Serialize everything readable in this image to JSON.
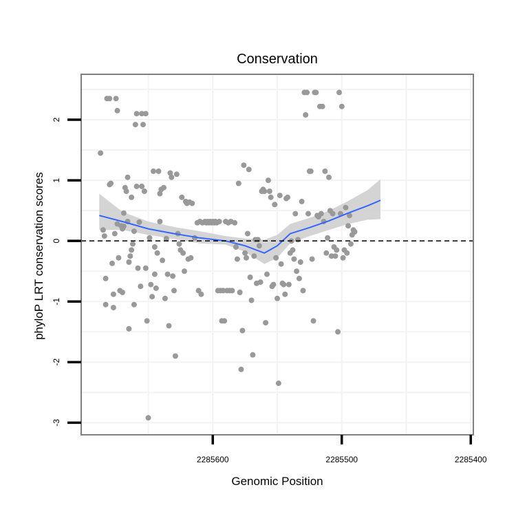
{
  "chart_data": {
    "type": "scatter",
    "title": "Conservation",
    "xlabel": "Genomic Position",
    "ylabel": "phyloP LRT conservation scores",
    "x_reversed": true,
    "xlim": [
      2285702,
      2285398
    ],
    "ylim": [
      -3.2,
      2.75
    ],
    "x_ticks": [
      2285600,
      2285500,
      2285400
    ],
    "x_tick_labels": [
      "2285600",
      "2285500",
      "2285400"
    ],
    "y_ticks": [
      -3,
      -2,
      -1,
      0,
      1,
      2
    ],
    "y_tick_labels": [
      "-3",
      "-2",
      "-1",
      "0",
      "1",
      "2"
    ],
    "reference_line": {
      "y": 0,
      "style": "dashed",
      "color": "#000000"
    },
    "grid": true,
    "colors": {
      "points": "#999999",
      "smooth_line": "#3366ff",
      "ribbon": "#cccccc",
      "grid": "#f3f3f3",
      "frame": "#7f7f7f"
    },
    "series": [
      {
        "kind": "points",
        "points": [
          [
            2285687,
            1.45
          ],
          [
            2285685,
            0.18
          ],
          [
            2285684,
            0.08
          ],
          [
            2285683,
            -0.62
          ],
          [
            2285683,
            -1.05
          ],
          [
            2285682,
            2.35
          ],
          [
            2285680,
            2.35
          ],
          [
            2285680,
            0.93
          ],
          [
            2285679,
            0.95
          ],
          [
            2285678,
            -0.37
          ],
          [
            2285677,
            -1.1
          ],
          [
            2285677,
            -0.88
          ],
          [
            2285676,
            0.12
          ],
          [
            2285675,
            2.35
          ],
          [
            2285674,
            2.15
          ],
          [
            2285674,
            0.28
          ],
          [
            2285673,
            -0.28
          ],
          [
            2285672,
            -0.82
          ],
          [
            2285671,
            0.25
          ],
          [
            2285670,
            0.2
          ],
          [
            2285670,
            -0.85
          ],
          [
            2285669,
            0.46
          ],
          [
            2285669,
            0.24
          ],
          [
            2285668,
            0.88
          ],
          [
            2285667,
            0.82
          ],
          [
            2285666,
            1.05
          ],
          [
            2285666,
            0.32
          ],
          [
            2285665,
            -0.35
          ],
          [
            2285665,
            -1.45
          ],
          [
            2285664,
            -0.25
          ],
          [
            2285663,
            0.72
          ],
          [
            2285663,
            -0.15
          ],
          [
            2285662,
            -0.05
          ],
          [
            2285661,
            0.16
          ],
          [
            2285661,
            -1.05
          ],
          [
            2285660,
            1.92
          ],
          [
            2285659,
            2.1
          ],
          [
            2285659,
            0.9
          ],
          [
            2285658,
            -0.45
          ],
          [
            2285657,
            0.31
          ],
          [
            2285656,
            -0.75
          ],
          [
            2285655,
            2.1
          ],
          [
            2285655,
            0.9
          ],
          [
            2285654,
            1.92
          ],
          [
            2285653,
            0.82
          ],
          [
            2285652,
            -0.45
          ],
          [
            2285652,
            2.1
          ],
          [
            2285651,
            -1.32
          ],
          [
            2285650,
            -2.92
          ],
          [
            2285649,
            0.05
          ],
          [
            2285648,
            -0.72
          ],
          [
            2285647,
            -0.92
          ],
          [
            2285646,
            1.15
          ],
          [
            2285645,
            -0.1
          ],
          [
            2285645,
            -0.55
          ],
          [
            2285644,
            -0.78
          ],
          [
            2285643,
            -0.2
          ],
          [
            2285642,
            1.15
          ],
          [
            2285641,
            0.78
          ],
          [
            2285641,
            0.32
          ],
          [
            2285640,
            0.85
          ],
          [
            2285639,
            -0.32
          ],
          [
            2285638,
            0.88
          ],
          [
            2285637,
            -0.95
          ],
          [
            2285636,
            0.04
          ],
          [
            2285635,
            -0.55
          ],
          [
            2285634,
            -1.4
          ],
          [
            2285633,
            1.12
          ],
          [
            2285632,
            1.05
          ],
          [
            2285631,
            -0.58
          ],
          [
            2285630,
            -0.82
          ],
          [
            2285629,
            -1.9
          ],
          [
            2285628,
            1.1
          ],
          [
            2285627,
            0.12
          ],
          [
            2285626,
            -0.05
          ],
          [
            2285625,
            -0.15
          ],
          [
            2285624,
            0.72
          ],
          [
            2285623,
            -0.2
          ],
          [
            2285622,
            -0.5
          ],
          [
            2285621,
            0.65
          ],
          [
            2285620,
            0.62
          ],
          [
            2285619,
            -0.3
          ],
          [
            2285618,
            0.64
          ],
          [
            2285617,
            -0.28
          ],
          [
            2285616,
            0.62
          ],
          [
            2285614,
            0.05
          ],
          [
            2285612,
            0.3
          ],
          [
            2285611,
            -0.82
          ],
          [
            2285610,
            0.32
          ],
          [
            2285609,
            -0.88
          ],
          [
            2285608,
            0.3
          ],
          [
            2285606,
            0.32
          ],
          [
            2285605,
            0.3
          ],
          [
            2285604,
            0.32
          ],
          [
            2285603,
            0.3
          ],
          [
            2285602,
            0.32
          ],
          [
            2285601,
            0.3
          ],
          [
            2285600,
            0.32
          ],
          [
            2285599,
            0.3
          ],
          [
            2285598,
            0.32
          ],
          [
            2285597,
            0.3
          ],
          [
            2285596,
            -0.82
          ],
          [
            2285595,
            0.32
          ],
          [
            2285594,
            -0.82
          ],
          [
            2285593,
            -1.32
          ],
          [
            2285592,
            -0.82
          ],
          [
            2285591,
            -1.32
          ],
          [
            2285590,
            0.32
          ],
          [
            2285589,
            -0.82
          ],
          [
            2285588,
            0.3
          ],
          [
            2285587,
            -0.82
          ],
          [
            2285586,
            0.32
          ],
          [
            2285585,
            -0.82
          ],
          [
            2285583,
            0.3
          ],
          [
            2285582,
            -0.1
          ],
          [
            2285581,
            -0.3
          ],
          [
            2285580,
            0.95
          ],
          [
            2285579,
            -0.85
          ],
          [
            2285578,
            -2.12
          ],
          [
            2285577,
            -1.48
          ],
          [
            2285576,
            1.25
          ],
          [
            2285575,
            -0.2
          ],
          [
            2285574,
            -0.28
          ],
          [
            2285573,
            0.12
          ],
          [
            2285572,
            1.18
          ],
          [
            2285571,
            -0.6
          ],
          [
            2285570,
            -0.98
          ],
          [
            2285569,
            -1.88
          ],
          [
            2285568,
            -0.25
          ],
          [
            2285567,
            0.02
          ],
          [
            2285566,
            -0.7
          ],
          [
            2285565,
            0.02
          ],
          [
            2285564,
            -0.08
          ],
          [
            2285563,
            -0.68
          ],
          [
            2285562,
            0.82
          ],
          [
            2285561,
            0.85
          ],
          [
            2285560,
            0.82
          ],
          [
            2285559,
            -1.35
          ],
          [
            2285558,
            -0.55
          ],
          [
            2285557,
            1.0
          ],
          [
            2285556,
            0.82
          ],
          [
            2285555,
            0.72
          ],
          [
            2285554,
            -0.75
          ],
          [
            2285553,
            -0.72
          ],
          [
            2285552,
            0.6
          ],
          [
            2285551,
            -0.28
          ],
          [
            2285550,
            -0.95
          ],
          [
            2285549,
            -2.35
          ],
          [
            2285548,
            0.75
          ],
          [
            2285547,
            -0.38
          ],
          [
            2285546,
            -0.7
          ],
          [
            2285545,
            -0.72
          ],
          [
            2285544,
            -0.88
          ],
          [
            2285543,
            0.7
          ],
          [
            2285542,
            0.72
          ],
          [
            2285541,
            -0.72
          ],
          [
            2285540,
            -0.2
          ],
          [
            2285539,
            0.0
          ],
          [
            2285538,
            -0.15
          ],
          [
            2285537,
            -0.3
          ],
          [
            2285536,
            0.45
          ],
          [
            2285535,
            -0.5
          ],
          [
            2285534,
            0.02
          ],
          [
            2285533,
            -0.62
          ],
          [
            2285532,
            -0.35
          ],
          [
            2285531,
            0.65
          ],
          [
            2285530,
            -0.82
          ],
          [
            2285529,
            2.45
          ],
          [
            2285528,
            2.08
          ],
          [
            2285527,
            2.45
          ],
          [
            2285526,
            0.45
          ],
          [
            2285525,
            1.15
          ],
          [
            2285524,
            1.15
          ],
          [
            2285523,
            -0.3
          ],
          [
            2285522,
            -1.32
          ],
          [
            2285521,
            2.45
          ],
          [
            2285520,
            2.45
          ],
          [
            2285519,
            0.42
          ],
          [
            2285518,
            0.4
          ],
          [
            2285517,
            2.22
          ],
          [
            2285516,
            0.45
          ],
          [
            2285515,
            2.22
          ],
          [
            2285514,
            0.32
          ],
          [
            2285513,
            1.15
          ],
          [
            2285512,
            -0.2
          ],
          [
            2285511,
            0.05
          ],
          [
            2285510,
            1.05
          ],
          [
            2285509,
            0.5
          ],
          [
            2285508,
            -0.25
          ],
          [
            2285507,
            0.45
          ],
          [
            2285506,
            -0.1
          ],
          [
            2285505,
            -0.25
          ],
          [
            2285504,
            -0.15
          ],
          [
            2285503,
            -1.5
          ],
          [
            2285502,
            2.45
          ],
          [
            2285501,
            0.45
          ],
          [
            2285500,
            2.22
          ],
          [
            2285499,
            -0.28
          ],
          [
            2285498,
            -0.15
          ],
          [
            2285497,
            0.55
          ],
          [
            2285496,
            -0.2
          ],
          [
            2285495,
            0.25
          ],
          [
            2285494,
            0.42
          ],
          [
            2285493,
            -0.05
          ],
          [
            2285492,
            0.1
          ],
          [
            2285491,
            0.18
          ],
          [
            2285490,
            0.15
          ]
        ]
      },
      {
        "kind": "smooth",
        "x": [
          2285688,
          2285670,
          2285650,
          2285630,
          2285610,
          2285590,
          2285575,
          2285560,
          2285550,
          2285540,
          2285525,
          2285510,
          2285495,
          2285480,
          2285470
        ],
        "y": [
          0.42,
          0.32,
          0.2,
          0.12,
          0.05,
          0.0,
          -0.08,
          -0.2,
          -0.08,
          0.12,
          0.22,
          0.33,
          0.46,
          0.58,
          0.67
        ],
        "lower": [
          0.18,
          0.18,
          0.1,
          0.03,
          -0.04,
          -0.06,
          -0.18,
          -0.38,
          -0.28,
          -0.04,
          0.08,
          0.18,
          0.28,
          0.35,
          0.36
        ],
        "upper": [
          0.78,
          0.48,
          0.32,
          0.23,
          0.16,
          0.08,
          0.04,
          0.02,
          0.1,
          0.28,
          0.38,
          0.5,
          0.66,
          0.84,
          1.02
        ]
      }
    ]
  }
}
